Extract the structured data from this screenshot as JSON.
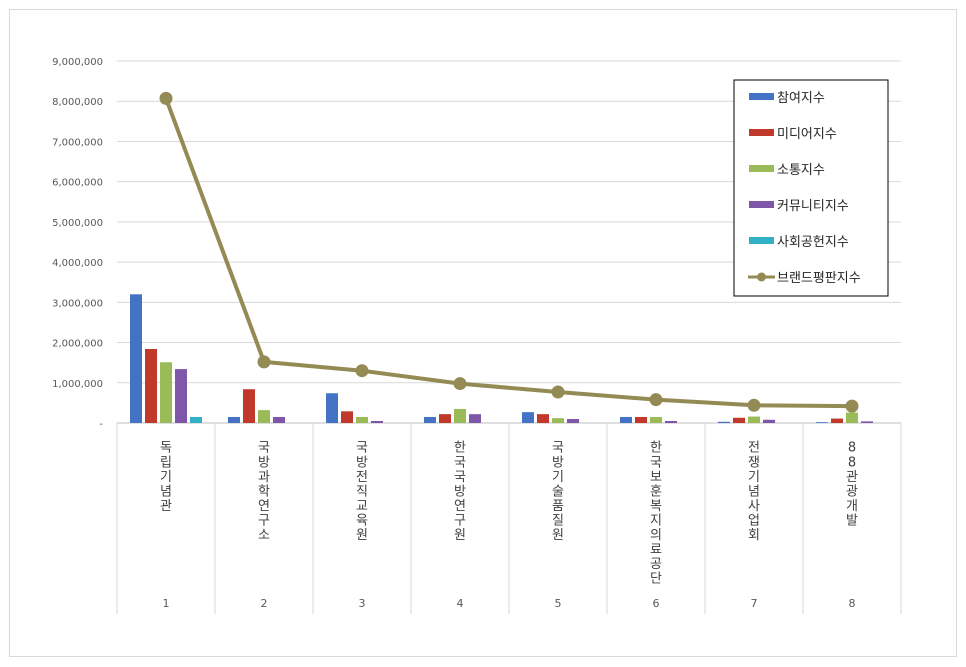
{
  "chart_data": {
    "type": "bar",
    "categories": [
      "독립기념관",
      "국방과학연구소",
      "국방전직교육원",
      "한국국방연구원",
      "국방기술품질원",
      "한국보훈복지의료공단",
      "전쟁기념사업회",
      "88관광개발"
    ],
    "category_numbers": [
      "1",
      "2",
      "3",
      "4",
      "5",
      "6",
      "7",
      "8"
    ],
    "ylim": [
      0,
      9000000
    ],
    "yticks": [
      0,
      1000000,
      2000000,
      3000000,
      4000000,
      5000000,
      6000000,
      7000000,
      8000000,
      9000000
    ],
    "ytick_labels": [
      "-",
      "1,000,000",
      "2,000,000",
      "3,000,000",
      "4,000,000",
      "5,000,000",
      "6,000,000",
      "7,000,000",
      "8,000,000",
      "9,000,000"
    ],
    "grid": true,
    "legend_position": "top-right",
    "series": [
      {
        "name": "참여지수",
        "kind": "bar",
        "color": "#4472C4",
        "values": [
          3200000,
          150000,
          740000,
          150000,
          270000,
          150000,
          30000,
          20000
        ]
      },
      {
        "name": "미디어지수",
        "kind": "bar",
        "color": "#C0392B",
        "values": [
          1840000,
          840000,
          290000,
          220000,
          220000,
          150000,
          130000,
          110000
        ]
      },
      {
        "name": "소통지수",
        "kind": "bar",
        "color": "#9BBB59",
        "values": [
          1510000,
          320000,
          150000,
          350000,
          120000,
          150000,
          160000,
          260000
        ]
      },
      {
        "name": "커뮤니티지수",
        "kind": "bar",
        "color": "#7E57A8",
        "values": [
          1340000,
          150000,
          50000,
          220000,
          100000,
          50000,
          80000,
          40000
        ]
      },
      {
        "name": "사회공헌지수",
        "kind": "bar",
        "color": "#31B0C6",
        "values": [
          150000,
          0,
          0,
          0,
          0,
          0,
          0,
          0
        ]
      },
      {
        "name": "브랜드평판지수",
        "kind": "line",
        "color": "#948A54",
        "values": [
          8070000,
          1520000,
          1300000,
          980000,
          770000,
          580000,
          440000,
          420000
        ]
      }
    ]
  }
}
